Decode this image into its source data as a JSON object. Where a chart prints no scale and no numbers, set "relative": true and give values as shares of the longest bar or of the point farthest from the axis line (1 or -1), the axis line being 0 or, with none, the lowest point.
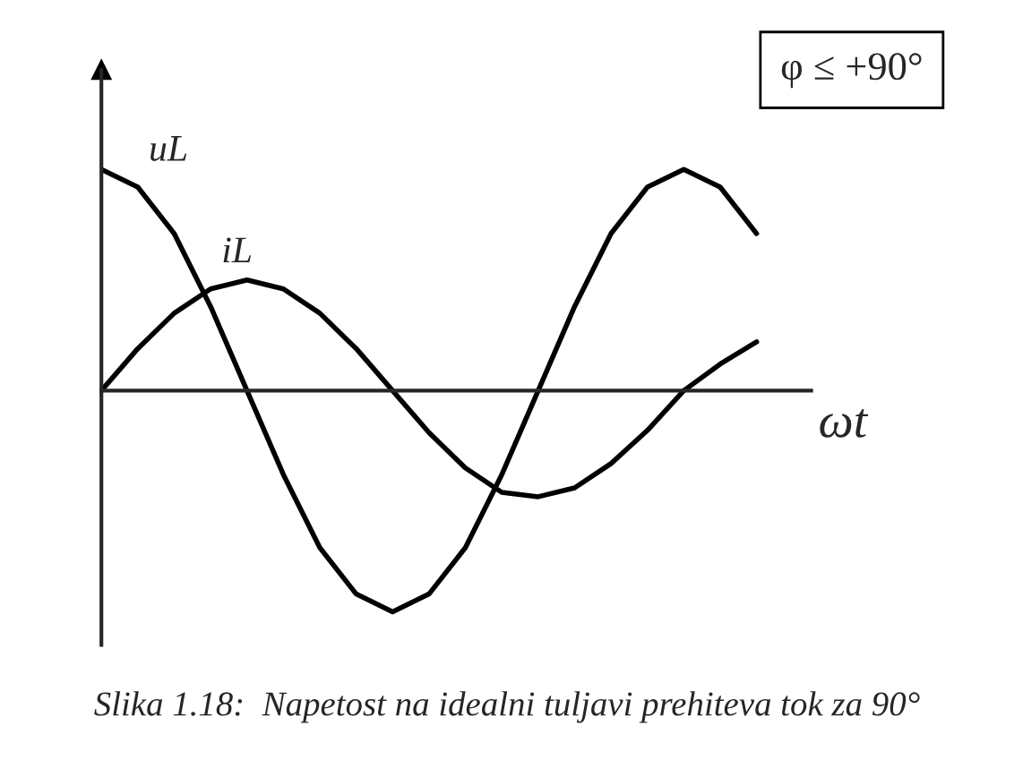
{
  "chart_data": {
    "type": "line",
    "relative": true,
    "xlabel": "ωt",
    "marker": "none",
    "line_style": "solid",
    "categories": [
      null,
      null,
      null,
      null,
      null,
      null,
      null,
      null,
      null,
      null,
      null,
      null,
      null,
      null,
      null,
      null,
      null,
      null,
      null
    ],
    "series": [
      {
        "name": "uL",
        "color": "#000000",
        "values": [
          1,
          0.92,
          0.71,
          0.38,
          0,
          -0.38,
          -0.71,
          -0.92,
          -1,
          -0.92,
          -0.71,
          -0.38,
          0,
          0.38,
          0.71,
          0.92,
          1,
          0.92,
          0.71
        ]
      },
      {
        "name": "iL",
        "color": "#000000",
        "values": [
          0,
          0.19,
          0.35,
          0.46,
          0.5,
          0.46,
          0.35,
          0.19,
          0,
          -0.19,
          -0.35,
          -0.46,
          -0.48,
          -0.44,
          -0.33,
          -0.18,
          0,
          0.12,
          0.22
        ]
      }
    ],
    "annotations": [
      "φ ≤ +90°",
      "Slika 1.18:  Napetost na idealni tuljavi prehiteva tok za 90°"
    ]
  }
}
